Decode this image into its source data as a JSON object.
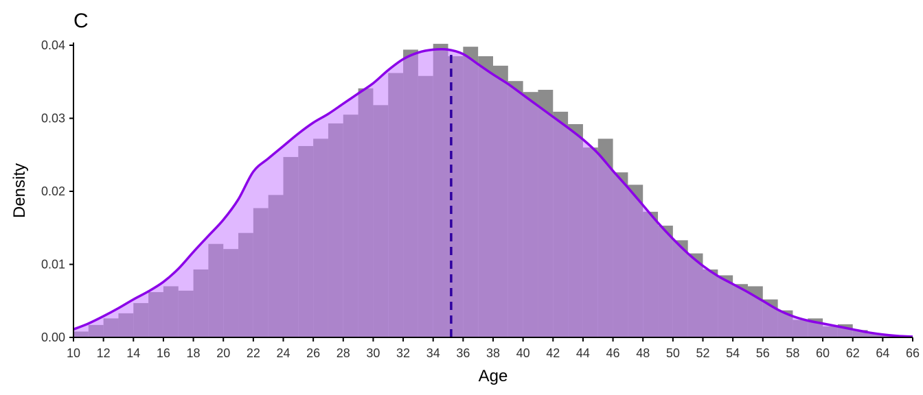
{
  "chart_data": {
    "type": "histogram-density",
    "panel_tag": "C",
    "xlabel": "Age",
    "ylabel": "Density",
    "xlim": [
      10,
      66
    ],
    "ylim": [
      0,
      0.04
    ],
    "x_ticks": [
      10,
      12,
      14,
      16,
      18,
      20,
      22,
      24,
      26,
      28,
      30,
      32,
      34,
      36,
      38,
      40,
      42,
      44,
      46,
      48,
      50,
      52,
      54,
      56,
      58,
      60,
      62,
      64,
      66
    ],
    "x_tick_labels": [
      "10",
      "12",
      "14",
      "16",
      "18",
      "20",
      "22",
      "24",
      "26",
      "28",
      "30",
      "32",
      "34",
      "36",
      "38",
      "40",
      "42",
      "44",
      "46",
      "48",
      "50",
      "52",
      "54",
      "56",
      "58",
      "60",
      "62",
      "64",
      "66"
    ],
    "y_ticks": [
      0,
      0.01,
      0.02,
      0.03,
      0.04
    ],
    "y_tick_labels": [
      "0.00",
      "0.01",
      "0.02",
      "0.03",
      "0.04"
    ],
    "histogram": {
      "bin_width": 1,
      "bin_starts": [
        10,
        11,
        12,
        13,
        14,
        15,
        16,
        17,
        18,
        19,
        20,
        21,
        22,
        23,
        24,
        25,
        26,
        27,
        28,
        29,
        30,
        31,
        32,
        33,
        34,
        35,
        36,
        37,
        38,
        39,
        40,
        41,
        42,
        43,
        44,
        45,
        46,
        47,
        48,
        49,
        50,
        51,
        52,
        53,
        54,
        55,
        56,
        57,
        58,
        59,
        60,
        61,
        62,
        63,
        64,
        65
      ],
      "values": [
        0.0008,
        0.0017,
        0.0026,
        0.0033,
        0.0047,
        0.0062,
        0.007,
        0.0064,
        0.0093,
        0.0128,
        0.0121,
        0.0143,
        0.0177,
        0.0195,
        0.0247,
        0.0262,
        0.0272,
        0.0293,
        0.0305,
        0.0341,
        0.0318,
        0.0362,
        0.0394,
        0.0358,
        0.0402,
        0.0385,
        0.0398,
        0.0385,
        0.0372,
        0.0351,
        0.0336,
        0.0339,
        0.0309,
        0.0292,
        0.026,
        0.0272,
        0.0226,
        0.0209,
        0.0172,
        0.0153,
        0.0133,
        0.0115,
        0.0093,
        0.0085,
        0.0073,
        0.007,
        0.0052,
        0.0037,
        0.0024,
        0.0026,
        0.0015,
        0.0018,
        0.001,
        0.0005,
        0.0003,
        0.0001
      ],
      "color": "#8c8c8c"
    },
    "density": {
      "x": [
        10,
        11,
        12,
        13,
        14,
        15,
        16,
        17,
        18,
        19,
        20,
        21,
        22,
        23,
        24,
        25,
        26,
        27,
        28,
        29,
        30,
        31,
        32,
        33,
        34,
        35,
        36,
        37,
        38,
        39,
        40,
        41,
        42,
        43,
        44,
        45,
        46,
        47,
        48,
        49,
        50,
        51,
        52,
        53,
        54,
        55,
        56,
        57,
        58,
        59,
        60,
        61,
        62,
        63,
        64,
        65,
        66
      ],
      "y": [
        0.0011,
        0.0019,
        0.0029,
        0.004,
        0.0052,
        0.0063,
        0.0076,
        0.0094,
        0.0117,
        0.0139,
        0.0161,
        0.0189,
        0.0227,
        0.0245,
        0.0262,
        0.0279,
        0.0294,
        0.0306,
        0.032,
        0.0334,
        0.0348,
        0.0366,
        0.0381,
        0.039,
        0.0394,
        0.0394,
        0.0388,
        0.0374,
        0.036,
        0.0347,
        0.0332,
        0.0317,
        0.0302,
        0.0287,
        0.0271,
        0.0252,
        0.0228,
        0.0205,
        0.0181,
        0.0157,
        0.0135,
        0.0115,
        0.0098,
        0.0084,
        0.0073,
        0.0062,
        0.005,
        0.0038,
        0.0029,
        0.0023,
        0.0019,
        0.0015,
        0.0011,
        0.0007,
        0.0004,
        0.0002,
        0.0001
      ],
      "line_color": "#8b00e8",
      "fill_color": "#c77dff"
    },
    "mean_line": {
      "x": 35.2,
      "color": "#2e00a0"
    },
    "grid": false,
    "legend": "none"
  }
}
